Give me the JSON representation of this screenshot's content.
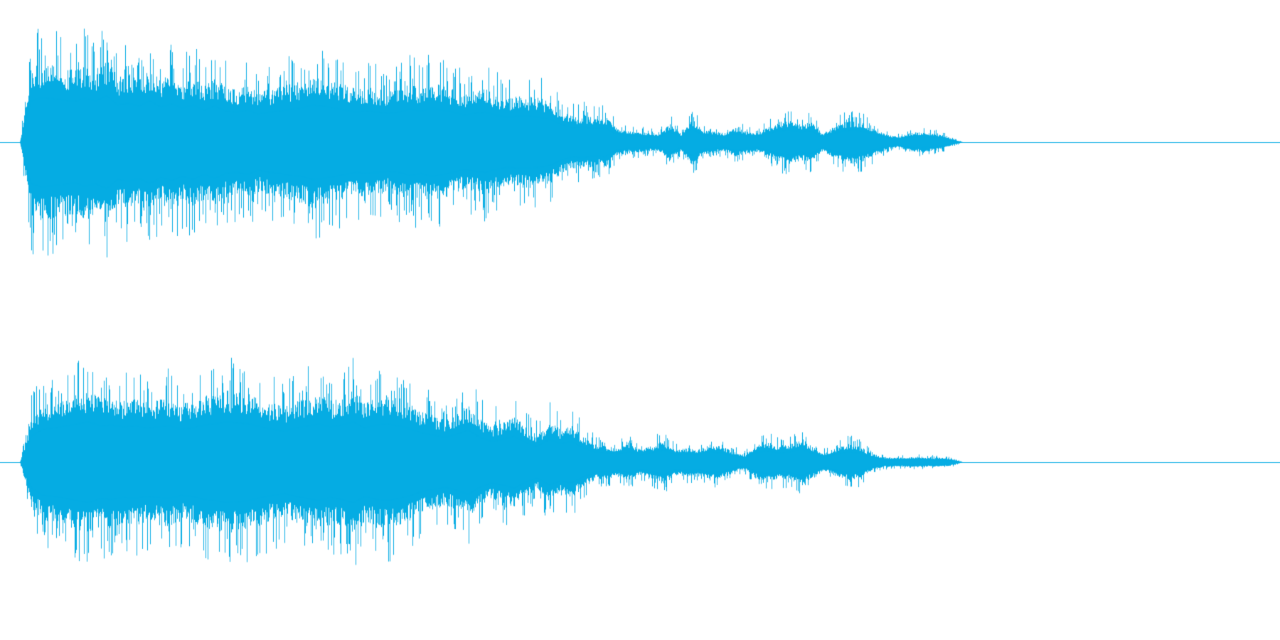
{
  "waveform": {
    "color": "#05ace3",
    "background": "#ffffff",
    "channels": [
      {
        "name": "channel-1",
        "sound_fraction": 0.875,
        "envelope": [
          0.0,
          0.8,
          0.86,
          0.84,
          0.82,
          0.78,
          0.85,
          0.8,
          0.9,
          0.72,
          0.75,
          0.7,
          0.8,
          0.68,
          0.74,
          0.66,
          0.72,
          0.62,
          0.7,
          0.6,
          0.58,
          0.62,
          0.54,
          0.58,
          0.6,
          0.64,
          0.66,
          0.72,
          0.7,
          0.66,
          0.62,
          0.58,
          0.6,
          0.58,
          0.56,
          0.58,
          0.64,
          0.6,
          0.66,
          0.62,
          0.58,
          0.52,
          0.56,
          0.58,
          0.52,
          0.48,
          0.5,
          0.5,
          0.48,
          0.44,
          0.34,
          0.28,
          0.3,
          0.26,
          0.28,
          0.16,
          0.12,
          0.12,
          0.1,
          0.1,
          0.2,
          0.1,
          0.26,
          0.14,
          0.12,
          0.1,
          0.16,
          0.12,
          0.1,
          0.16,
          0.22,
          0.24,
          0.2,
          0.22,
          0.1,
          0.16,
          0.22,
          0.24,
          0.2,
          0.14,
          0.08,
          0.06,
          0.1,
          0.11,
          0.1,
          0.08,
          0.04,
          0.0
        ]
      },
      {
        "name": "channel-2",
        "sound_fraction": 0.875,
        "envelope": [
          0.0,
          0.5,
          0.64,
          0.66,
          0.7,
          0.74,
          0.78,
          0.7,
          0.72,
          0.68,
          0.7,
          0.66,
          0.68,
          0.7,
          0.64,
          0.66,
          0.72,
          0.74,
          0.78,
          0.76,
          0.74,
          0.68,
          0.64,
          0.6,
          0.66,
          0.7,
          0.74,
          0.68,
          0.72,
          0.78,
          0.66,
          0.72,
          0.74,
          0.7,
          0.64,
          0.56,
          0.52,
          0.48,
          0.54,
          0.62,
          0.48,
          0.4,
          0.44,
          0.5,
          0.38,
          0.3,
          0.44,
          0.36,
          0.4,
          0.28,
          0.2,
          0.18,
          0.16,
          0.2,
          0.14,
          0.18,
          0.24,
          0.14,
          0.16,
          0.14,
          0.2,
          0.18,
          0.12,
          0.08,
          0.18,
          0.22,
          0.18,
          0.2,
          0.26,
          0.16,
          0.1,
          0.16,
          0.2,
          0.18,
          0.1,
          0.06,
          0.05,
          0.05,
          0.06,
          0.05,
          0.05,
          0.04,
          0.0
        ]
      }
    ]
  }
}
